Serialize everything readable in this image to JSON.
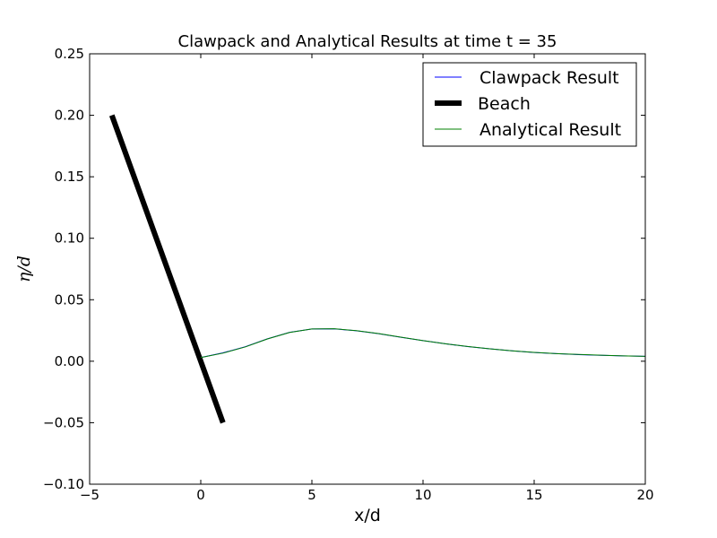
{
  "chart_data": {
    "type": "line",
    "title": "Clawpack and Analytical Results at time t = 35",
    "xlabel": "x/d",
    "ylabel": "η/d",
    "xlim": [
      -5,
      20
    ],
    "ylim": [
      -0.1,
      0.25
    ],
    "xticks": [
      -5,
      0,
      5,
      10,
      15,
      20
    ],
    "xtick_labels": [
      "−5",
      "0",
      "5",
      "10",
      "15",
      "20"
    ],
    "yticks": [
      -0.1,
      -0.05,
      0.0,
      0.05,
      0.1,
      0.15,
      0.2,
      0.25
    ],
    "ytick_labels": [
      "−0.10",
      "−0.05",
      "0.00",
      "0.05",
      "0.10",
      "0.15",
      "0.20",
      "0.25"
    ],
    "grid": false,
    "legend_position": "top-right",
    "series": [
      {
        "name": "Clawpack Result",
        "color": "#0000ff",
        "width": 1,
        "x": [
          0,
          1,
          2,
          3,
          4,
          5,
          6,
          7,
          8,
          9,
          10,
          11,
          12,
          13,
          14,
          15,
          16,
          17,
          18,
          19,
          20
        ],
        "y": [
          0.003,
          0.0068,
          0.0118,
          0.0182,
          0.0235,
          0.0262,
          0.0263,
          0.0248,
          0.0224,
          0.0195,
          0.0168,
          0.0142,
          0.0119,
          0.0101,
          0.0085,
          0.0071,
          0.0062,
          0.0054,
          0.0048,
          0.0044,
          0.004
        ]
      },
      {
        "name": "Beach",
        "color": "#000000",
        "width": 6,
        "x": [
          -4,
          1
        ],
        "y": [
          0.2,
          -0.05
        ]
      },
      {
        "name": "Analytical Result",
        "color": "#008000",
        "width": 1,
        "x": [
          0,
          1,
          2,
          3,
          4,
          5,
          6,
          7,
          8,
          9,
          10,
          11,
          12,
          13,
          14,
          15,
          16,
          17,
          18,
          19,
          20
        ],
        "y": [
          0.003,
          0.0066,
          0.0116,
          0.0181,
          0.0234,
          0.0262,
          0.0264,
          0.0249,
          0.0225,
          0.0196,
          0.0168,
          0.0142,
          0.012,
          0.0101,
          0.0085,
          0.0072,
          0.0062,
          0.0055,
          0.0049,
          0.0044,
          0.004
        ]
      }
    ]
  }
}
